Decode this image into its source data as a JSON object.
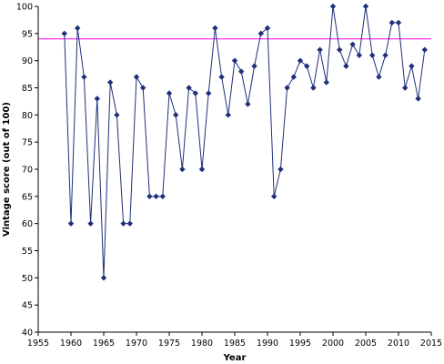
{
  "chart_data": {
    "type": "line",
    "title": "",
    "xlabel": "Year",
    "ylabel": "Vintage score (out of 100)",
    "xlim": [
      1955,
      2015
    ],
    "ylim": [
      40,
      100
    ],
    "x_ticks": [
      1955,
      1960,
      1965,
      1970,
      1975,
      1980,
      1985,
      1990,
      1995,
      2000,
      2005,
      2010,
      2015
    ],
    "y_ticks": [
      40,
      45,
      50,
      55,
      60,
      65,
      70,
      75,
      80,
      85,
      90,
      95,
      100
    ],
    "grid": false,
    "legend": "none",
    "reference_line": {
      "y": 94,
      "color": "#ff00ff"
    },
    "series": [
      {
        "color": "#1f2f7a",
        "marker": "diamond",
        "x": [
          1959,
          1960,
          1961,
          1962,
          1963,
          1964,
          1965,
          1966,
          1967,
          1968,
          1969,
          1970,
          1971,
          1972,
          1973,
          1974,
          1975,
          1976,
          1977,
          1978,
          1979,
          1980,
          1981,
          1982,
          1983,
          1984,
          1985,
          1986,
          1987,
          1988,
          1989,
          1990,
          1991,
          1992,
          1993,
          1994,
          1995,
          1996,
          1997,
          1998,
          1999,
          2000,
          2001,
          2002,
          2003,
          2004,
          2005,
          2006,
          2007,
          2008,
          2009,
          2010,
          2011,
          2012,
          2013,
          2014
        ],
        "y": [
          95,
          60,
          96,
          87,
          60,
          83,
          50,
          86,
          80,
          60,
          60,
          87,
          85,
          65,
          65,
          65,
          84,
          80,
          70,
          85,
          84,
          70,
          84,
          96,
          87,
          80,
          90,
          88,
          82,
          89,
          95,
          96,
          65,
          70,
          85,
          87,
          90,
          89,
          85,
          92,
          86,
          100,
          92,
          89,
          93,
          91,
          100,
          91,
          87,
          91,
          97,
          97,
          85,
          89,
          83,
          92
        ]
      }
    ]
  }
}
